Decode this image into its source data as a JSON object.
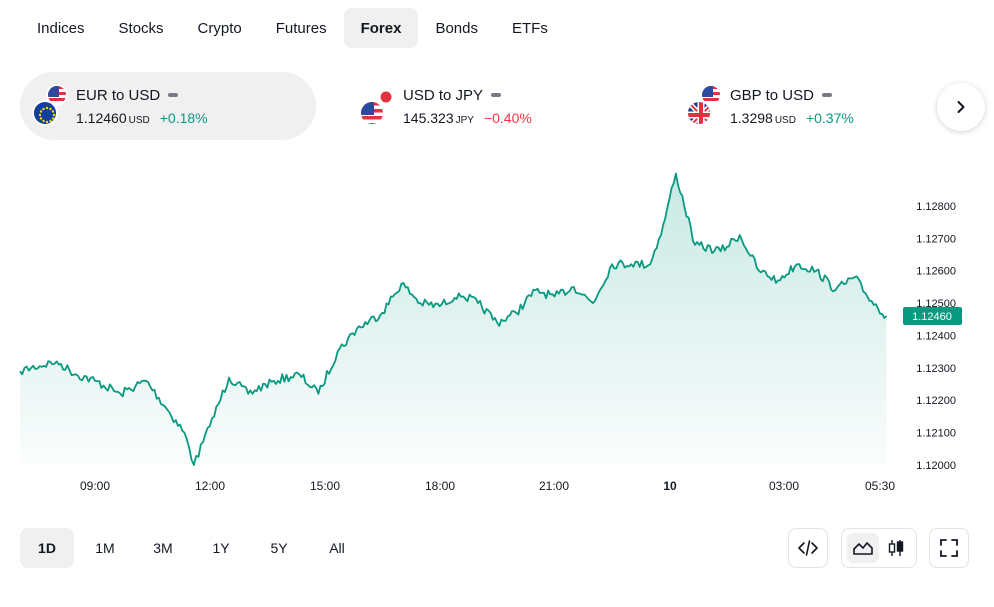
{
  "tabs": [
    {
      "label": "Indices",
      "active": false
    },
    {
      "label": "Stocks",
      "active": false
    },
    {
      "label": "Crypto",
      "active": false
    },
    {
      "label": "Futures",
      "active": false
    },
    {
      "label": "Forex",
      "active": true
    },
    {
      "label": "Bonds",
      "active": false
    },
    {
      "label": "ETFs",
      "active": false
    }
  ],
  "cards": [
    {
      "name": "EUR to USD",
      "price": "1.12460",
      "currency": "USD",
      "change": "+0.18%",
      "direction": "up",
      "active": true
    },
    {
      "name": "USD to JPY",
      "price": "145.323",
      "currency": "JPY",
      "change": "−0.40%",
      "direction": "down",
      "active": false
    },
    {
      "name": "GBP to USD",
      "price": "1.3298",
      "currency": "USD",
      "change": "+0.37%",
      "direction": "up",
      "active": false
    }
  ],
  "next_icon": "chevron-right-icon",
  "ranges": [
    {
      "label": "1D",
      "active": true
    },
    {
      "label": "1M",
      "active": false
    },
    {
      "label": "3M",
      "active": false
    },
    {
      "label": "1Y",
      "active": false
    },
    {
      "label": "5Y",
      "active": false
    },
    {
      "label": "All",
      "active": false
    }
  ],
  "toolbar": {
    "embed_icon": "code-icon",
    "area_icon": "area-chart-icon",
    "candle_icon": "candlestick-icon",
    "fullscreen_icon": "fullscreen-icon"
  },
  "colors": {
    "line": "#089981",
    "up": "#089981",
    "down": "#f23645",
    "last_price_bg": "#089981"
  },
  "chart_data": {
    "type": "area",
    "x_labels": [
      "09:00",
      "12:00",
      "15:00",
      "18:00",
      "21:00",
      "10",
      "03:00",
      "05:30"
    ],
    "y_ticks": [
      "1.12800",
      "1.12700",
      "1.12600",
      "1.12500",
      "1.12400",
      "1.12300",
      "1.12200",
      "1.12100",
      "1.12000"
    ],
    "ylim": [
      1.12,
      1.1288
    ],
    "last_price_label": "1.12460",
    "points": [
      [
        "06:40",
        1.1229
      ],
      [
        "07:20",
        1.123
      ],
      [
        "08:00",
        1.1232
      ],
      [
        "08:30",
        1.1228
      ],
      [
        "09:00",
        1.1226
      ],
      [
        "09:40",
        1.1222
      ],
      [
        "10:20",
        1.1226
      ],
      [
        "10:50",
        1.1218
      ],
      [
        "11:20",
        1.121
      ],
      [
        "11:35",
        1.12
      ],
      [
        "12:00",
        1.1212
      ],
      [
        "12:30",
        1.1227
      ],
      [
        "13:00",
        1.1222
      ],
      [
        "13:40",
        1.1226
      ],
      [
        "14:20",
        1.1228
      ],
      [
        "14:50",
        1.1222
      ],
      [
        "15:20",
        1.1235
      ],
      [
        "15:50",
        1.1242
      ],
      [
        "16:30",
        1.1247
      ],
      [
        "17:00",
        1.1256
      ],
      [
        "17:30",
        1.125
      ],
      [
        "18:00",
        1.1249
      ],
      [
        "18:30",
        1.1253
      ],
      [
        "19:00",
        1.125
      ],
      [
        "19:30",
        1.1244
      ],
      [
        "20:00",
        1.1247
      ],
      [
        "20:30",
        1.1254
      ],
      [
        "21:00",
        1.1252
      ],
      [
        "21:30",
        1.1255
      ],
      [
        "22:00",
        1.125
      ],
      [
        "22:30",
        1.1262
      ],
      [
        "23:00",
        1.1262
      ],
      [
        "23:30",
        1.1262
      ],
      [
        "23:50",
        1.1274
      ],
      [
        "00:10",
        1.129
      ],
      [
        "00:40",
        1.1268
      ],
      [
        "01:20",
        1.1266
      ],
      [
        "01:50",
        1.1271
      ],
      [
        "02:20",
        1.126
      ],
      [
        "02:50",
        1.1257
      ],
      [
        "03:20",
        1.1262
      ],
      [
        "03:50",
        1.126
      ],
      [
        "04:20",
        1.1254
      ],
      [
        "04:50",
        1.1258
      ],
      [
        "05:10",
        1.1252
      ],
      [
        "05:40",
        1.1246
      ]
    ]
  }
}
